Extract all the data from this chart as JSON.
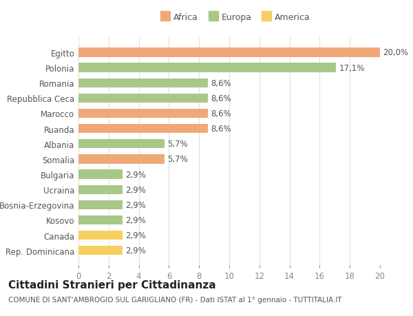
{
  "categories": [
    "Egitto",
    "Polonia",
    "Romania",
    "Repubblica Ceca",
    "Marocco",
    "Ruanda",
    "Albania",
    "Somalia",
    "Bulgaria",
    "Ucraina",
    "Bosnia-Erzegovina",
    "Kosovo",
    "Canada",
    "Rep. Dominicana"
  ],
  "values": [
    20.0,
    17.1,
    8.6,
    8.6,
    8.6,
    8.6,
    5.7,
    5.7,
    2.9,
    2.9,
    2.9,
    2.9,
    2.9,
    2.9
  ],
  "labels": [
    "20,0%",
    "17,1%",
    "8,6%",
    "8,6%",
    "8,6%",
    "8,6%",
    "5,7%",
    "5,7%",
    "2,9%",
    "2,9%",
    "2,9%",
    "2,9%",
    "2,9%",
    "2,9%"
  ],
  "continents": [
    "Africa",
    "Europa",
    "Europa",
    "Europa",
    "Africa",
    "Africa",
    "Europa",
    "Africa",
    "Europa",
    "Europa",
    "Europa",
    "Europa",
    "America",
    "America"
  ],
  "colors": {
    "Africa": "#F0A878",
    "Europa": "#A8C887",
    "America": "#F5D060"
  },
  "legend_labels": [
    "Africa",
    "Europa",
    "America"
  ],
  "legend_colors": [
    "#F0A878",
    "#A8C887",
    "#F5D060"
  ],
  "title": "Cittadini Stranieri per Cittadinanza",
  "subtitle": "COMUNE DI SANT'AMBROGIO SUL GARIGLIANO (FR) - Dati ISTAT al 1° gennaio - TUTTITALIA.IT",
  "xlim": [
    0,
    20
  ],
  "xticks": [
    0,
    2,
    4,
    6,
    8,
    10,
    12,
    14,
    16,
    18,
    20
  ],
  "background_color": "#ffffff",
  "grid_color": "#e0e0e0",
  "bar_height": 0.6,
  "label_fontsize": 8.5,
  "tick_fontsize": 8.5,
  "title_fontsize": 11,
  "subtitle_fontsize": 7.5
}
